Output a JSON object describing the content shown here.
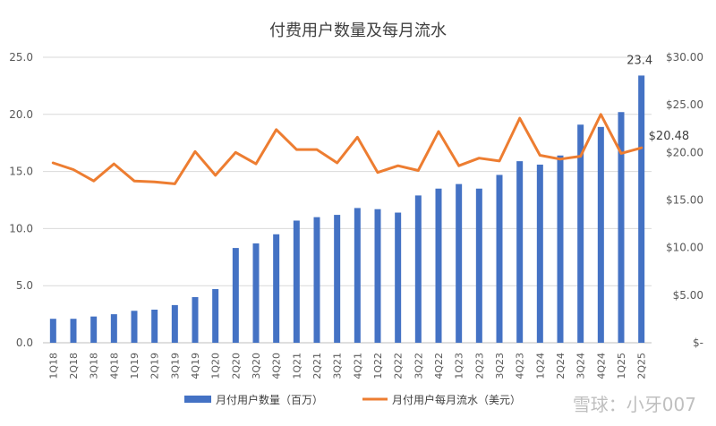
{
  "chart_data": {
    "type": "bar+line",
    "title": "付费用户数量及每月流水",
    "categories": [
      "1Q18",
      "2Q18",
      "3Q18",
      "4Q18",
      "1Q19",
      "2Q19",
      "3Q19",
      "4Q19",
      "1Q20",
      "2Q20",
      "3Q20",
      "4Q20",
      "1Q21",
      "2Q21",
      "3Q21",
      "4Q21",
      "1Q22",
      "2Q22",
      "3Q22",
      "4Q22",
      "1Q23",
      "2Q23",
      "3Q23",
      "4Q23",
      "1Q24",
      "2Q24",
      "3Q24",
      "4Q24",
      "1Q25",
      "2Q25"
    ],
    "series": [
      {
        "name": "月付用户数量（百万）",
        "type": "bar",
        "axis": "left",
        "color": "#4472C4",
        "values": [
          2.1,
          2.1,
          2.3,
          2.5,
          2.8,
          2.9,
          3.3,
          4.0,
          4.7,
          8.3,
          8.7,
          9.5,
          10.7,
          11.0,
          11.2,
          11.8,
          11.7,
          11.4,
          12.9,
          13.5,
          13.9,
          13.5,
          14.7,
          15.9,
          15.6,
          16.4,
          19.1,
          18.9,
          20.2,
          23.4
        ]
      },
      {
        "name": "月付用户每月流水（美元）",
        "type": "line",
        "axis": "right",
        "color": "#ED7D31",
        "values": [
          18.9,
          18.2,
          17.0,
          18.8,
          17.0,
          16.9,
          16.7,
          20.1,
          17.6,
          20.0,
          18.8,
          22.4,
          20.3,
          20.3,
          18.9,
          21.6,
          17.9,
          18.6,
          18.1,
          22.2,
          18.6,
          19.4,
          19.1,
          23.6,
          19.7,
          19.3,
          19.6,
          24.0,
          19.9,
          20.48
        ]
      }
    ],
    "y_left": {
      "ylim": [
        0,
        25
      ],
      "ticks": [
        "0.0",
        "5.0",
        "10.0",
        "15.0",
        "20.0",
        "25.0"
      ]
    },
    "y_right": {
      "ylim": [
        0,
        30
      ],
      "ticks": [
        "$-",
        "$5.00",
        "$10.00",
        "$15.00",
        "$20.00",
        "$25.00",
        "$30.00"
      ]
    },
    "annotations": {
      "last_bar_label": "23.4",
      "last_line_label": "$20.48"
    },
    "legend_position": "bottom",
    "watermark": "雪球：小牙007"
  }
}
